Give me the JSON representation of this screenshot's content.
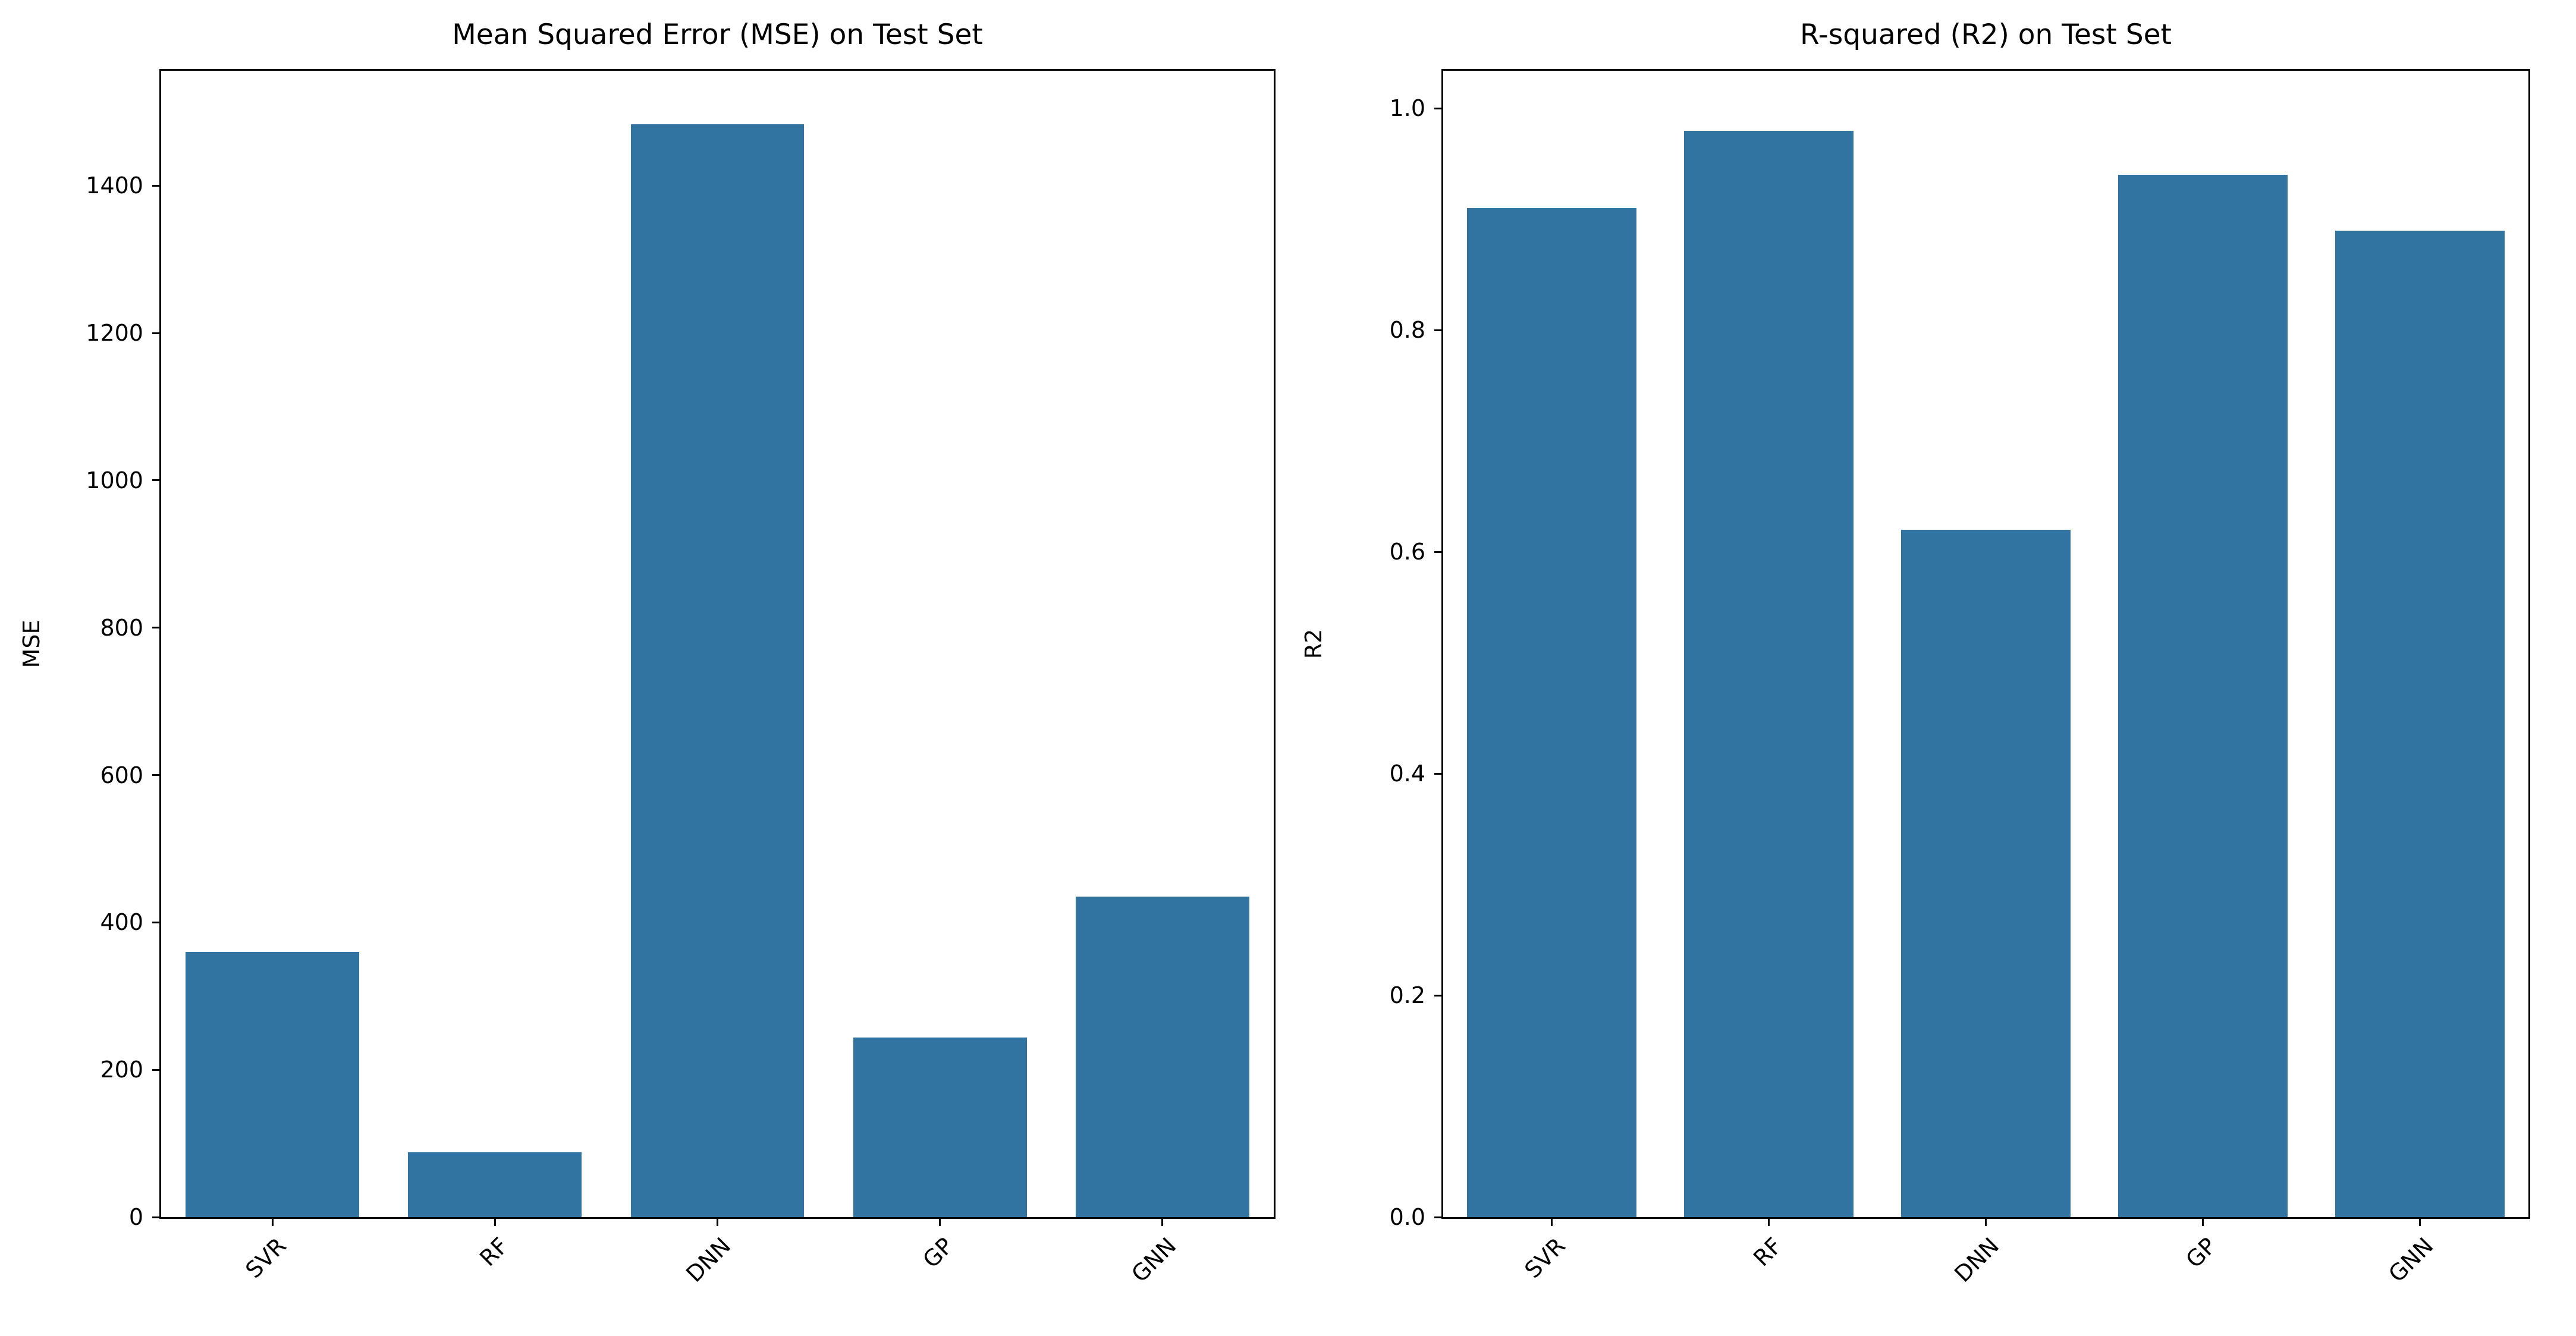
{
  "figure": {
    "background_color": "#ffffff",
    "bar_color": "#3274a1",
    "axis_color": "#000000",
    "text_color": "#000000"
  },
  "chart_data": [
    {
      "type": "bar",
      "title": "Mean Squared Error (MSE) on Test Set",
      "ylabel": "MSE",
      "xlabel": "",
      "categories": [
        "SVR",
        "RF",
        "DNN",
        "GP",
        "GNN"
      ],
      "values": [
        360,
        88,
        1483,
        244,
        435
      ],
      "ylim": [
        0,
        1556
      ],
      "yticks": [
        {
          "v": 0,
          "label": "0"
        },
        {
          "v": 200,
          "label": "200"
        },
        {
          "v": 400,
          "label": "400"
        },
        {
          "v": 600,
          "label": "600"
        },
        {
          "v": 800,
          "label": "800"
        },
        {
          "v": 1000,
          "label": "1000"
        },
        {
          "v": 1200,
          "label": "1200"
        },
        {
          "v": 1400,
          "label": "1400"
        }
      ],
      "grid": false,
      "legend": null,
      "bar_color": "#3274a1",
      "xtick_rotation_deg": 45
    },
    {
      "type": "bar",
      "title": "R-squared (R2) on Test Set",
      "ylabel": "R2",
      "xlabel": "",
      "categories": [
        "SVR",
        "RF",
        "DNN",
        "GP",
        "GNN"
      ],
      "values": [
        0.91,
        0.98,
        0.62,
        0.94,
        0.89
      ],
      "ylim": [
        0,
        1.034
      ],
      "yticks": [
        {
          "v": 0,
          "label": "0.0"
        },
        {
          "v": 0.2,
          "label": "0.2"
        },
        {
          "v": 0.4,
          "label": "0.4"
        },
        {
          "v": 0.6,
          "label": "0.6"
        },
        {
          "v": 0.8,
          "label": "0.8"
        },
        {
          "v": 1.0,
          "label": "1.0"
        }
      ],
      "grid": false,
      "legend": null,
      "bar_color": "#3274a1",
      "xtick_rotation_deg": 45
    }
  ]
}
